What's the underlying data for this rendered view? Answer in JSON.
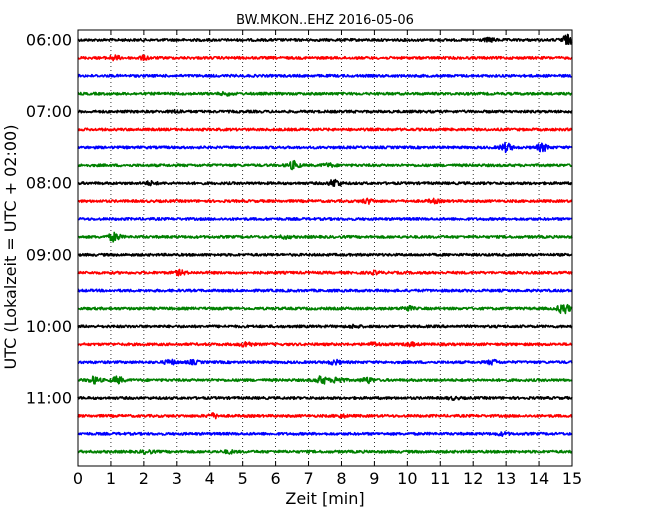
{
  "chart_data": {
    "type": "line",
    "title": "BW.MKON..EHZ 2016-05-06",
    "xlabel": "Zeit  [min]",
    "ylabel": "UTC (Lokalzeit = UTC + 02:00)",
    "xlim": [
      0,
      15
    ],
    "x_ticks": [
      "0",
      "1",
      "2",
      "3",
      "4",
      "5",
      "6",
      "7",
      "8",
      "9",
      "10",
      "11",
      "12",
      "13",
      "14",
      "15"
    ],
    "y_tick_labels": [
      "06:00",
      "07:00",
      "08:00",
      "09:00",
      "10:00",
      "11:00"
    ],
    "grid": "vertical dotted at each minute",
    "color_cycle": [
      "#000000",
      "#ff0000",
      "#0000ff",
      "#008000"
    ],
    "series": [
      {
        "start": "06:00",
        "color": "#000000",
        "events": [
          {
            "t": 12.5,
            "amp": 1.5
          },
          {
            "t": 14.85,
            "amp": 4.5
          }
        ]
      },
      {
        "start": "06:15",
        "color": "#ff0000",
        "events": [
          {
            "t": 1.1,
            "amp": 2.0
          },
          {
            "t": 2.0,
            "amp": 1.5
          }
        ]
      },
      {
        "start": "06:30",
        "color": "#0000ff",
        "events": []
      },
      {
        "start": "06:45",
        "color": "#008000",
        "events": [
          {
            "t": 4.5,
            "amp": 1.2
          }
        ]
      },
      {
        "start": "07:00",
        "color": "#000000",
        "events": [
          {
            "t": 3.0,
            "amp": 1.0
          }
        ]
      },
      {
        "start": "07:15",
        "color": "#ff0000",
        "events": []
      },
      {
        "start": "07:30",
        "color": "#0000ff",
        "events": [
          {
            "t": 13.0,
            "amp": 4.0
          },
          {
            "t": 14.1,
            "amp": 3.5
          }
        ]
      },
      {
        "start": "07:45",
        "color": "#008000",
        "events": [
          {
            "t": 6.55,
            "amp": 3.5
          },
          {
            "t": 7.6,
            "amp": 1.5
          }
        ]
      },
      {
        "start": "08:00",
        "color": "#000000",
        "events": [
          {
            "t": 2.2,
            "amp": 1.5
          },
          {
            "t": 7.8,
            "amp": 3.5
          }
        ]
      },
      {
        "start": "08:15",
        "color": "#ff0000",
        "events": [
          {
            "t": 8.8,
            "amp": 2.0
          },
          {
            "t": 10.8,
            "amp": 1.5
          }
        ]
      },
      {
        "start": "08:30",
        "color": "#0000ff",
        "events": []
      },
      {
        "start": "08:45",
        "color": "#008000",
        "events": [
          {
            "t": 1.1,
            "amp": 4.0
          },
          {
            "t": 6.3,
            "amp": 1.2
          }
        ]
      },
      {
        "start": "09:00",
        "color": "#000000",
        "events": []
      },
      {
        "start": "09:15",
        "color": "#ff0000",
        "events": [
          {
            "t": 3.1,
            "amp": 2.0
          },
          {
            "t": 9.0,
            "amp": 1.2
          }
        ]
      },
      {
        "start": "09:30",
        "color": "#0000ff",
        "events": []
      },
      {
        "start": "09:45",
        "color": "#008000",
        "events": [
          {
            "t": 10.0,
            "amp": 2.0
          },
          {
            "t": 14.75,
            "amp": 5.0
          }
        ]
      },
      {
        "start": "10:00",
        "color": "#000000",
        "events": [
          {
            "t": 8.4,
            "amp": 1.2
          }
        ]
      },
      {
        "start": "10:15",
        "color": "#ff0000",
        "events": [
          {
            "t": 5.1,
            "amp": 2.5
          },
          {
            "t": 9.0,
            "amp": 1.5
          },
          {
            "t": 10.1,
            "amp": 1.5
          }
        ]
      },
      {
        "start": "10:30",
        "color": "#0000ff",
        "events": [
          {
            "t": 2.8,
            "amp": 2.0
          },
          {
            "t": 3.5,
            "amp": 1.5
          },
          {
            "t": 7.8,
            "amp": 2.0
          },
          {
            "t": 12.6,
            "amp": 2.0
          }
        ]
      },
      {
        "start": "10:45",
        "color": "#008000",
        "events": [
          {
            "t": 0.5,
            "amp": 3.0
          },
          {
            "t": 1.2,
            "amp": 3.0
          },
          {
            "t": 7.4,
            "amp": 3.5
          },
          {
            "t": 7.9,
            "amp": 3.0
          },
          {
            "t": 8.8,
            "amp": 2.5
          }
        ]
      },
      {
        "start": "11:00",
        "color": "#000000",
        "events": [
          {
            "t": 11.4,
            "amp": 1.0
          }
        ]
      },
      {
        "start": "11:15",
        "color": "#ff0000",
        "events": [
          {
            "t": 4.1,
            "amp": 2.0
          },
          {
            "t": 8.0,
            "amp": 1.2
          }
        ]
      },
      {
        "start": "11:30",
        "color": "#0000ff",
        "events": [
          {
            "t": 12.9,
            "amp": 1.2
          }
        ]
      },
      {
        "start": "11:45",
        "color": "#008000",
        "events": [
          {
            "t": 2.1,
            "amp": 1.5
          },
          {
            "t": 4.6,
            "amp": 1.2
          }
        ]
      }
    ]
  }
}
